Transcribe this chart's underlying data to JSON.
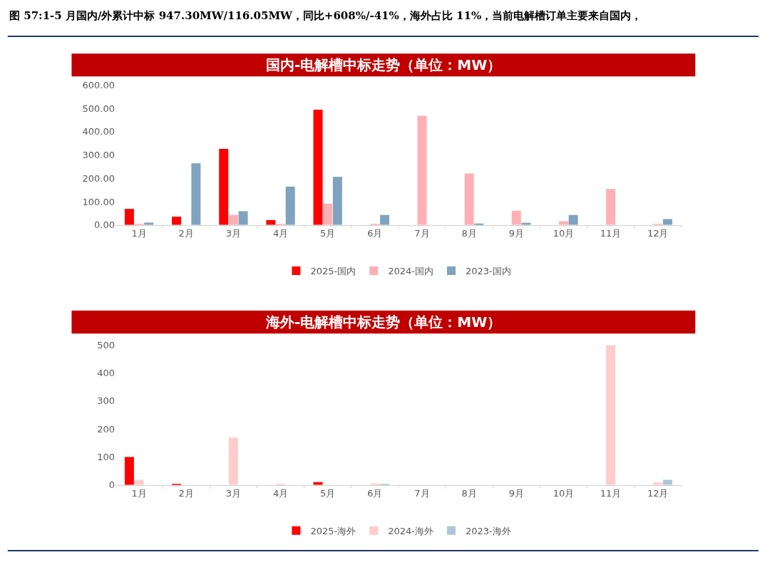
{
  "chart_data": [
    {
      "type": "bar",
      "title": "国内-电解槽中标走势（单位：MW）",
      "annotations": [
        "图 57:1-5 月国内/外累计中标 947.30MW/116.05MW，同比+608%/-41%，海外占比 11%，当前电解槽订单主要来自国内，"
      ],
      "categories": [
        "1月",
        "2月",
        "3月",
        "4月",
        "5月",
        "6月",
        "7月",
        "8月",
        "9月",
        "10月",
        "11月",
        "12月"
      ],
      "series": [
        {
          "name": "2025-国内",
          "color": "#ff0000",
          "values": [
            69,
            35,
            326,
            21,
            494,
            null,
            null,
            null,
            null,
            null,
            null,
            null
          ]
        },
        {
          "name": "2024-国内",
          "color": "#ffb0b4",
          "values": [
            2,
            null,
            43,
            3,
            92,
            3,
            468,
            221,
            61,
            16,
            154,
            3
          ]
        },
        {
          "name": "2023-国内",
          "color": "#7fa3bf",
          "values": [
            10,
            264,
            59,
            164,
            206,
            43,
            null,
            6,
            9,
            43,
            null,
            25
          ]
        }
      ],
      "ylim": [
        0,
        600
      ],
      "yticks": [
        {
          "value": 0,
          "label": "0.00"
        },
        {
          "value": 100,
          "label": "100.00"
        },
        {
          "value": 200,
          "label": "200.00"
        },
        {
          "value": 300,
          "label": "300.00"
        },
        {
          "value": 400,
          "label": "400.00"
        },
        {
          "value": 500,
          "label": "500.00"
        },
        {
          "value": 600,
          "label": "600.00"
        }
      ],
      "legend": "bottom"
    },
    {
      "type": "bar",
      "title": "海外-电解槽中标走势（单位：MW）",
      "categories": [
        "1月",
        "2月",
        "3月",
        "4月",
        "5月",
        "6月",
        "7月",
        "8月",
        "9月",
        "10月",
        "11月",
        "12月"
      ],
      "series": [
        {
          "name": "2025-海外",
          "color": "#ff0000",
          "values": [
            100,
            3,
            null,
            null,
            10,
            null,
            null,
            null,
            null,
            null,
            null,
            null
          ]
        },
        {
          "name": "2024-海外",
          "color": "#ffcccc",
          "values": [
            18,
            null,
            169,
            2,
            null,
            5,
            null,
            null,
            null,
            null,
            499,
            9
          ]
        },
        {
          "name": "2023-海外",
          "color": "#adc6d8",
          "values": [
            null,
            null,
            null,
            null,
            null,
            3,
            null,
            null,
            null,
            null,
            null,
            18
          ]
        }
      ],
      "ylim": [
        0,
        500
      ],
      "yticks": [
        0,
        100,
        200,
        300,
        400,
        500
      ],
      "legend": "bottom"
    }
  ]
}
